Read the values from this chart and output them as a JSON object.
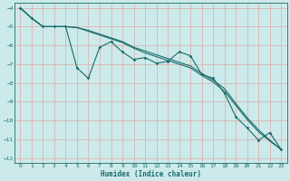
{
  "xlabel": "Humidex (Indice chaleur)",
  "bg_color": "#cceaea",
  "grid_color": "#ddaaaa",
  "line_color": "#1a6b6b",
  "xlim": [
    -0.5,
    23.5
  ],
  "ylim": [
    -12.25,
    -3.75
  ],
  "xticks": [
    0,
    1,
    2,
    3,
    4,
    5,
    6,
    7,
    8,
    9,
    10,
    11,
    12,
    13,
    14,
    15,
    16,
    17,
    18,
    19,
    20,
    21,
    22,
    23
  ],
  "yticks": [
    -12,
    -11,
    -10,
    -9,
    -8,
    -7,
    -6,
    -5,
    -4
  ],
  "x_data": [
    0,
    1,
    2,
    3,
    4,
    5,
    6,
    7,
    8,
    9,
    10,
    11,
    12,
    13,
    14,
    15,
    16,
    17,
    18,
    19,
    20,
    21,
    22,
    23
  ],
  "y_line1": [
    -4.0,
    -4.55,
    -5.0,
    -5.0,
    -5.0,
    -7.2,
    -7.75,
    -6.1,
    -5.8,
    -6.35,
    -6.75,
    -6.65,
    -6.95,
    -6.85,
    -6.35,
    -6.55,
    -7.55,
    -7.75,
    -8.55,
    -9.8,
    -10.4,
    -11.05,
    -10.65,
    -11.55
  ],
  "y_line2": [
    -4.0,
    -4.55,
    -5.0,
    -5.0,
    -5.0,
    -5.05,
    -5.2,
    -5.4,
    -5.6,
    -5.8,
    -6.1,
    -6.3,
    -6.5,
    -6.7,
    -6.9,
    -7.1,
    -7.5,
    -7.85,
    -8.3,
    -9.1,
    -9.85,
    -10.5,
    -11.05,
    -11.55
  ],
  "y_line3": [
    -4.0,
    -4.55,
    -5.0,
    -5.0,
    -5.0,
    -5.05,
    -5.25,
    -5.45,
    -5.65,
    -5.85,
    -6.15,
    -6.4,
    -6.6,
    -6.8,
    -7.0,
    -7.2,
    -7.6,
    -7.95,
    -8.45,
    -9.2,
    -9.95,
    -10.6,
    -11.1,
    -11.55
  ]
}
